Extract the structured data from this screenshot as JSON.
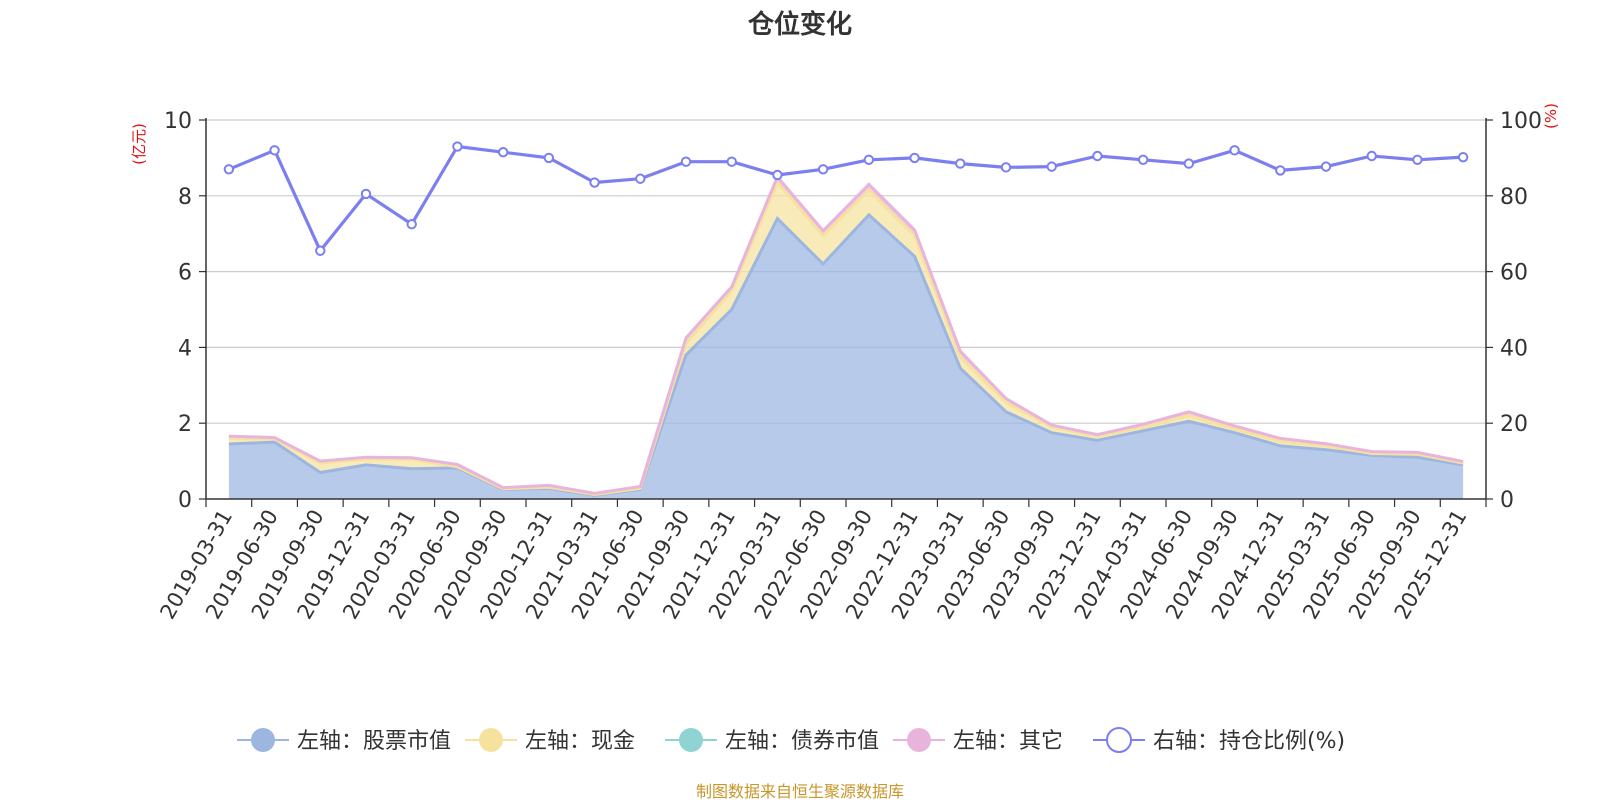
{
  "chart_data": {
    "type": "area",
    "title": "仓位变化",
    "y_left_unit": "(亿元)",
    "y_right_unit": "(%)",
    "y_left_range": [
      0,
      10
    ],
    "y_right_range": [
      0,
      100
    ],
    "y_left_ticks": [
      "0",
      "2",
      "4",
      "6",
      "8",
      "10"
    ],
    "y_right_ticks": [
      "0",
      "20",
      "40",
      "60",
      "80",
      "100"
    ],
    "grid": true,
    "legend_position": "bottom",
    "categories": [
      "2019-03-31",
      "2019-06-30",
      "2019-09-30",
      "2019-12-31",
      "2020-03-31",
      "2020-06-30",
      "2020-09-30",
      "2020-12-31",
      "2021-03-31",
      "2021-06-30",
      "2021-09-30",
      "2021-12-31",
      "2022-03-31",
      "2022-06-30",
      "2022-09-30",
      "2022-12-31",
      "2023-03-31",
      "2023-06-30",
      "2023-09-30",
      "2023-12-31",
      "2024-03-31",
      "2024-06-30",
      "2024-09-30",
      "2024-12-31",
      "2025-03-31",
      "2025-06-30",
      "2025-09-30",
      "2025-12-31"
    ],
    "series": [
      {
        "name": "左轴：股票市值",
        "axis": "left",
        "kind": "stacked-area",
        "color": "#9db6e0",
        "values": [
          1.45,
          1.5,
          0.7,
          0.9,
          0.8,
          0.82,
          0.25,
          0.28,
          0.1,
          0.25,
          3.8,
          5.0,
          7.4,
          6.2,
          7.5,
          6.4,
          3.45,
          2.3,
          1.75,
          1.55,
          1.8,
          2.05,
          1.75,
          1.4,
          1.3,
          1.15,
          1.1,
          0.9
        ]
      },
      {
        "name": "左轴：现金",
        "axis": "left",
        "kind": "stacked-area",
        "color": "#f5e29e",
        "values": [
          0.15,
          0.08,
          0.25,
          0.15,
          0.25,
          0.03,
          0.02,
          0.03,
          0.02,
          0.03,
          0.3,
          0.5,
          0.95,
          0.75,
          0.65,
          0.55,
          0.3,
          0.25,
          0.15,
          0.1,
          0.1,
          0.15,
          0.1,
          0.12,
          0.1,
          0.05,
          0.08,
          0.05
        ]
      },
      {
        "name": "左轴：债券市值",
        "axis": "left",
        "kind": "stacked-area",
        "color": "#8fd3d3",
        "values": [
          0,
          0,
          0,
          0,
          0,
          0,
          0,
          0,
          0,
          0,
          0,
          0,
          0,
          0,
          0,
          0,
          0,
          0,
          0,
          0,
          0,
          0,
          0,
          0,
          0,
          0,
          0,
          0
        ]
      },
      {
        "name": "左轴：其它",
        "axis": "left",
        "kind": "stacked-area",
        "color": "#e8b4dc",
        "values": [
          0.06,
          0.04,
          0.05,
          0.05,
          0.04,
          0.06,
          0.03,
          0.05,
          0.03,
          0.05,
          0.15,
          0.1,
          0.15,
          0.13,
          0.15,
          0.15,
          0.15,
          0.1,
          0.05,
          0.05,
          0.07,
          0.1,
          0.08,
          0.08,
          0.06,
          0.05,
          0.05,
          0.04
        ]
      },
      {
        "name": "右轴：持仓比例(%)",
        "axis": "right",
        "kind": "line",
        "color": "#7b7ff0",
        "values": [
          87,
          92,
          65.5,
          80.5,
          72.5,
          93,
          91.5,
          90,
          83.5,
          84.5,
          89,
          89,
          85.5,
          87,
          89.5,
          90,
          88.5,
          87.5,
          87.7,
          90.5,
          89.5,
          88.5,
          92,
          86.7,
          87.7,
          90.5,
          89.5,
          90.2
        ]
      }
    ],
    "source": "制图数据来自恒生聚源数据库"
  }
}
